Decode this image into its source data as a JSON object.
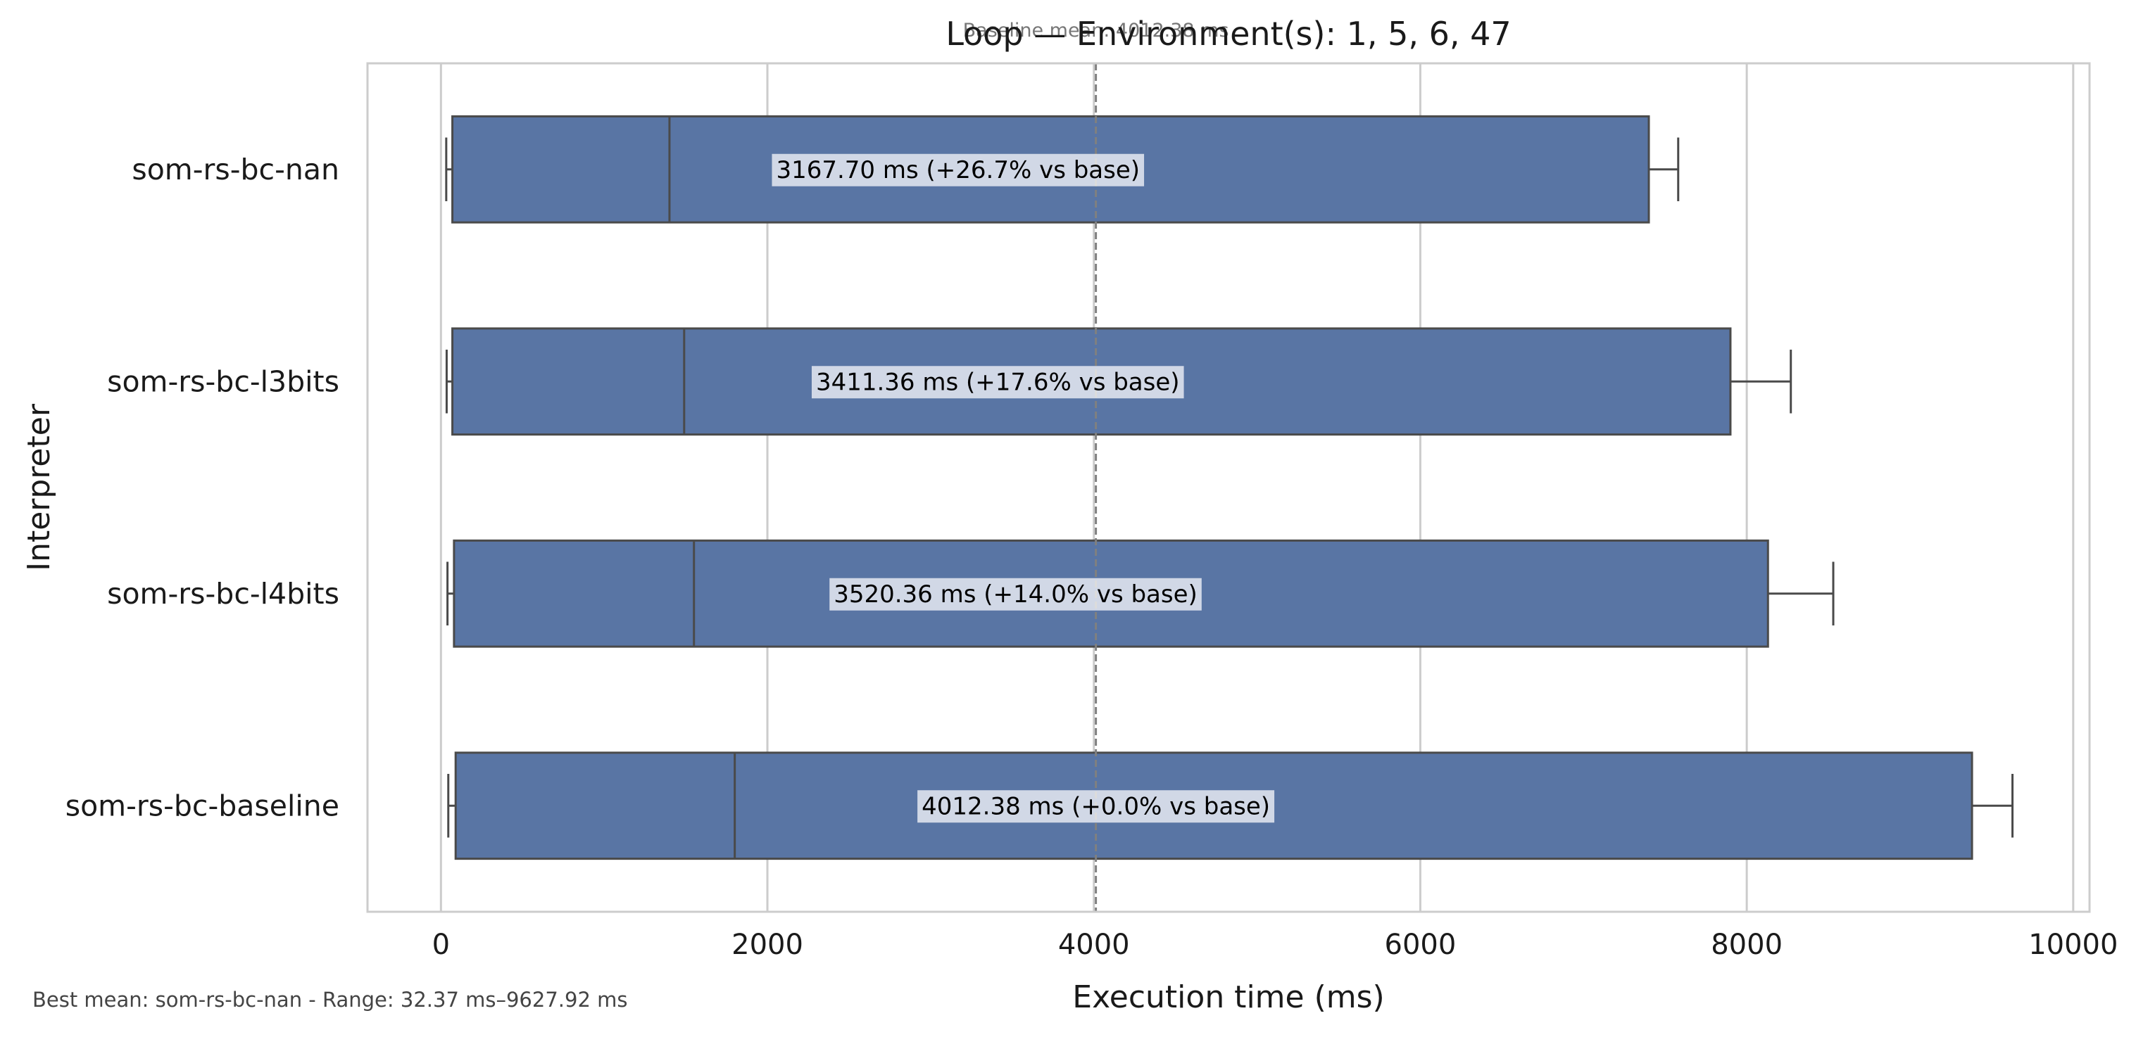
{
  "chart_data": {
    "type": "box",
    "title": "Loop — Environment(s): 1, 5, 6, 47",
    "xlabel": "Execution time (ms)",
    "ylabel": "Interpreter",
    "xlim": [
      -450,
      10100
    ],
    "xticks": [
      0,
      2000,
      4000,
      6000,
      8000,
      10000
    ],
    "grid": "vertical",
    "orientation": "horizontal",
    "colors": {
      "box": "#5975a4",
      "edge": "#4a4a4a",
      "grid": "#cccccc",
      "frame": "#cccccc",
      "reference": "#808080"
    },
    "categories": [
      "som-rs-bc-nan",
      "som-rs-bc-l3bits",
      "som-rs-bc-l4bits",
      "som-rs-bc-baseline"
    ],
    "series": [
      {
        "category": "som-rs-bc-nan",
        "whisker_low": 32.37,
        "q1": 70,
        "median": 1400,
        "q3": 7400,
        "whisker_high": 7580,
        "mean": 3167.7,
        "label": "3167.70 ms  (+26.7% vs base)"
      },
      {
        "category": "som-rs-bc-l3bits",
        "whisker_low": 35,
        "q1": 70,
        "median": 1490,
        "q3": 7900,
        "whisker_high": 8270,
        "mean": 3411.36,
        "label": "3411.36 ms  (+17.6% vs base)"
      },
      {
        "category": "som-rs-bc-l4bits",
        "whisker_low": 40,
        "q1": 80,
        "median": 1550,
        "q3": 8130,
        "whisker_high": 8530,
        "mean": 3520.36,
        "label": "3520.36 ms  (+14.0% vs base)"
      },
      {
        "category": "som-rs-bc-baseline",
        "whisker_low": 45,
        "q1": 90,
        "median": 1800,
        "q3": 9380,
        "whisker_high": 9627.92,
        "mean": 4012.38,
        "label": "4012.38 ms  (+0.0% vs base)"
      }
    ],
    "reference_line": {
      "value": 4012.38,
      "label": "Baseline mean: 4012.38 ms"
    },
    "note": "Best mean: som-rs-bc-nan - Range: 32.37 ms–9627.92 ms"
  }
}
